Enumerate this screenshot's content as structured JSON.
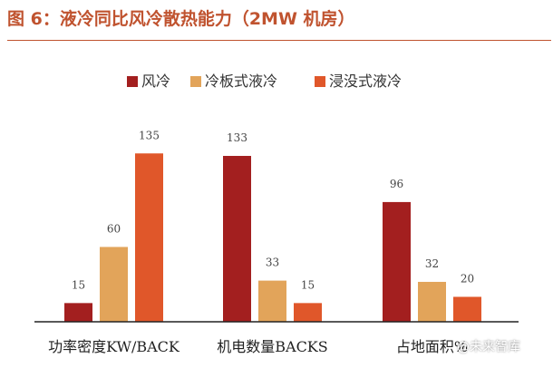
{
  "title": "图 6：液冷同比风冷散热能力（2MW 机房）",
  "watermark": "@未来智库",
  "chart_data": {
    "type": "bar",
    "categories": [
      "功率密度KW/BACK",
      "机电数量BACKS",
      "占地面积%"
    ],
    "series": [
      {
        "name": "风冷",
        "color": "#a31f1f",
        "values": [
          15,
          133,
          96
        ]
      },
      {
        "name": "冷板式液冷",
        "color": "#e2a45a",
        "values": [
          60,
          33,
          32
        ]
      },
      {
        "name": "浸没式液冷",
        "color": "#e0572a",
        "values": [
          135,
          15,
          20
        ]
      }
    ],
    "data_labels": true,
    "legend": "top-center",
    "grid": false,
    "ylim": [
      0,
      145
    ],
    "xlabel": "",
    "ylabel": ""
  }
}
